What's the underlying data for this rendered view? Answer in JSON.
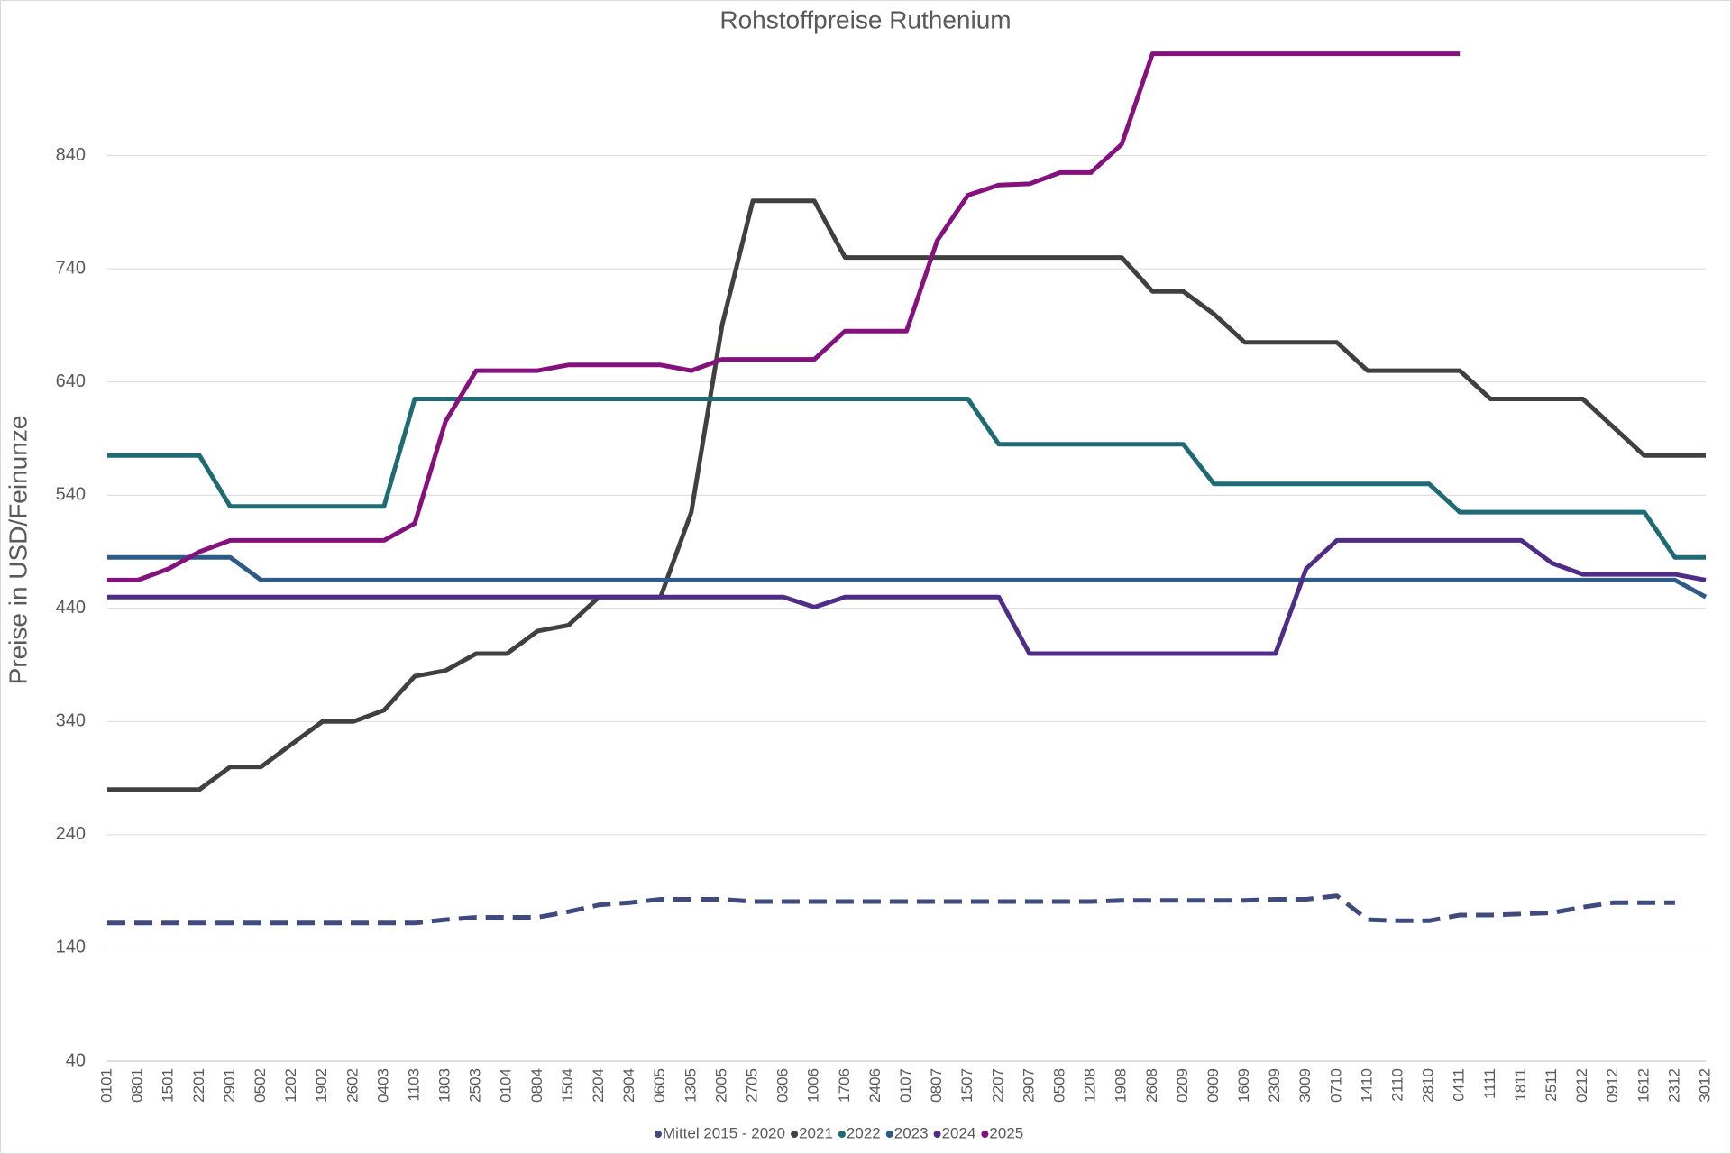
{
  "chart_data": {
    "type": "line",
    "title": "Rohstoffpreise Ruthenium",
    "y_label": "Preise in USD/Feinunze",
    "categories": [
      "0101",
      "0801",
      "1501",
      "2201",
      "2901",
      "0502",
      "1202",
      "1902",
      "2602",
      "0403",
      "1103",
      "1803",
      "2503",
      "0104",
      "0804",
      "1504",
      "2204",
      "2904",
      "0605",
      "1305",
      "2005",
      "2705",
      "0306",
      "1006",
      "1706",
      "2406",
      "0107",
      "0807",
      "1507",
      "2207",
      "2907",
      "0508",
      "1208",
      "1908",
      "2608",
      "0209",
      "0909",
      "1609",
      "2309",
      "3009",
      "0710",
      "1410",
      "2110",
      "2810",
      "0411",
      "1111",
      "1811",
      "2511",
      "0212",
      "0912",
      "1612",
      "2312",
      "3012"
    ],
    "ylim": [
      40,
      940
    ],
    "yticks": [
      40,
      140,
      240,
      340,
      440,
      540,
      640,
      740,
      840
    ],
    "grid": true,
    "legend": "bottom",
    "series": [
      {
        "name": "Mittel 2015 - 2020",
        "color": "#3f4a7e",
        "dashed": true,
        "values": [
          162,
          162,
          162,
          162,
          162,
          162,
          162,
          162,
          162,
          162,
          162,
          165,
          167,
          167,
          167,
          172,
          178,
          180,
          183,
          183,
          183,
          181,
          181,
          181,
          181,
          181,
          181,
          181,
          181,
          181,
          181,
          181,
          181,
          182,
          182,
          182,
          182,
          182,
          183,
          183,
          186,
          165,
          164,
          164,
          169,
          169,
          170,
          171,
          176,
          180,
          180,
          180,
          null
        ]
      },
      {
        "name": "2021",
        "color": "#404040",
        "values": [
          280,
          280,
          280,
          280,
          300,
          300,
          320,
          340,
          340,
          350,
          380,
          385,
          400,
          400,
          420,
          425,
          450,
          450,
          450,
          525,
          690,
          800,
          800,
          800,
          750,
          750,
          750,
          750,
          750,
          750,
          750,
          750,
          750,
          750,
          720,
          720,
          700,
          675,
          675,
          675,
          675,
          650,
          650,
          650,
          650,
          625,
          625,
          625,
          625,
          600,
          575,
          575,
          575
        ]
      },
      {
        "name": "2022",
        "color": "#1f6b73",
        "values": [
          575,
          575,
          575,
          575,
          530,
          530,
          530,
          530,
          530,
          530,
          625,
          625,
          625,
          625,
          625,
          625,
          625,
          625,
          625,
          625,
          625,
          625,
          625,
          625,
          625,
          625,
          625,
          625,
          625,
          585,
          585,
          585,
          585,
          585,
          585,
          585,
          550,
          550,
          550,
          550,
          550,
          550,
          550,
          550,
          525,
          525,
          525,
          525,
          525,
          525,
          525,
          485,
          485
        ]
      },
      {
        "name": "2023",
        "color": "#2d5a86",
        "values": [
          485,
          485,
          485,
          485,
          485,
          465,
          465,
          465,
          465,
          465,
          465,
          465,
          465,
          465,
          465,
          465,
          465,
          465,
          465,
          465,
          465,
          465,
          465,
          465,
          465,
          465,
          465,
          465,
          465,
          465,
          465,
          465,
          465,
          465,
          465,
          465,
          465,
          465,
          465,
          465,
          465,
          465,
          465,
          465,
          465,
          465,
          465,
          465,
          465,
          465,
          465,
          465,
          450
        ]
      },
      {
        "name": "2024",
        "color": "#4f2d86",
        "values": [
          450,
          450,
          450,
          450,
          450,
          450,
          450,
          450,
          450,
          450,
          450,
          450,
          450,
          450,
          450,
          450,
          450,
          450,
          450,
          450,
          450,
          450,
          450,
          441,
          450,
          450,
          450,
          450,
          450,
          450,
          400,
          400,
          400,
          400,
          400,
          400,
          400,
          400,
          400,
          475,
          500,
          500,
          500,
          500,
          500,
          500,
          500,
          480,
          470,
          470,
          470,
          470,
          465
        ]
      },
      {
        "name": "2025",
        "color": "#84117d",
        "values": [
          465,
          465,
          475,
          490,
          500,
          500,
          500,
          500,
          500,
          500,
          515,
          605,
          650,
          650,
          650,
          655,
          655,
          655,
          655,
          650,
          660,
          660,
          660,
          660,
          685,
          685,
          685,
          765,
          805,
          814,
          815,
          825,
          825,
          850,
          930,
          930,
          930,
          930,
          930,
          930,
          930,
          930,
          930,
          930,
          930,
          null,
          null,
          null,
          null,
          null,
          null,
          null,
          null
        ]
      }
    ]
  }
}
